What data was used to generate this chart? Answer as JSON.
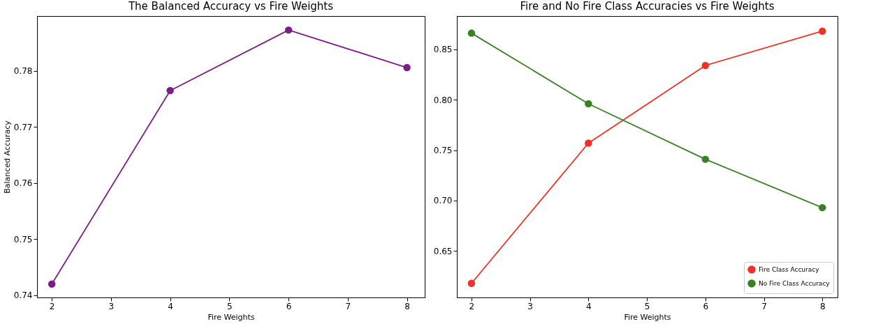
{
  "chart_data": [
    {
      "type": "line",
      "title": "The Balanced Accuracy vs Fire Weights",
      "xlabel": "Fire Weights",
      "ylabel": "Balanced Accuracy",
      "x": [
        2,
        4,
        6,
        8
      ],
      "series": [
        {
          "color": "#7b1f86",
          "values": [
            0.742,
            0.7765,
            0.7873,
            0.7806
          ]
        }
      ],
      "xlim": [
        1.75,
        8.3
      ],
      "xticks": [
        2,
        3,
        4,
        5,
        6,
        7,
        8
      ],
      "ylim": [
        0.7396,
        0.7898
      ],
      "yticks": [
        0.74,
        0.75,
        0.76,
        0.77,
        0.78
      ],
      "grid": false,
      "marker": "circle",
      "line_style": "solid"
    },
    {
      "type": "line",
      "title": "Fire and No Fire Class Accuracies vs Fire Weights",
      "xlabel": "Fire Weights",
      "x": [
        2,
        4,
        6,
        8
      ],
      "series": [
        {
          "name": "Fire Class Accuracy",
          "color": "#ee3224",
          "values": [
            0.618,
            0.757,
            0.834,
            0.868
          ]
        },
        {
          "name": "No Fire Class Accuracy",
          "color": "#3a8024",
          "values": [
            0.866,
            0.796,
            0.741,
            0.693
          ]
        }
      ],
      "xlim": [
        1.75,
        8.26
      ],
      "xticks": [
        2,
        3,
        4,
        5,
        6,
        7,
        8
      ],
      "ylim": [
        0.604,
        0.883
      ],
      "yticks": [
        0.65,
        {
          "value": 0.7,
          "label": "0.70"
        },
        0.75,
        {
          "value": 0.8,
          "label": "0.80"
        },
        0.85
      ],
      "grid": false,
      "legend": "bottom right",
      "marker": "circle",
      "line_style": "solid"
    }
  ]
}
